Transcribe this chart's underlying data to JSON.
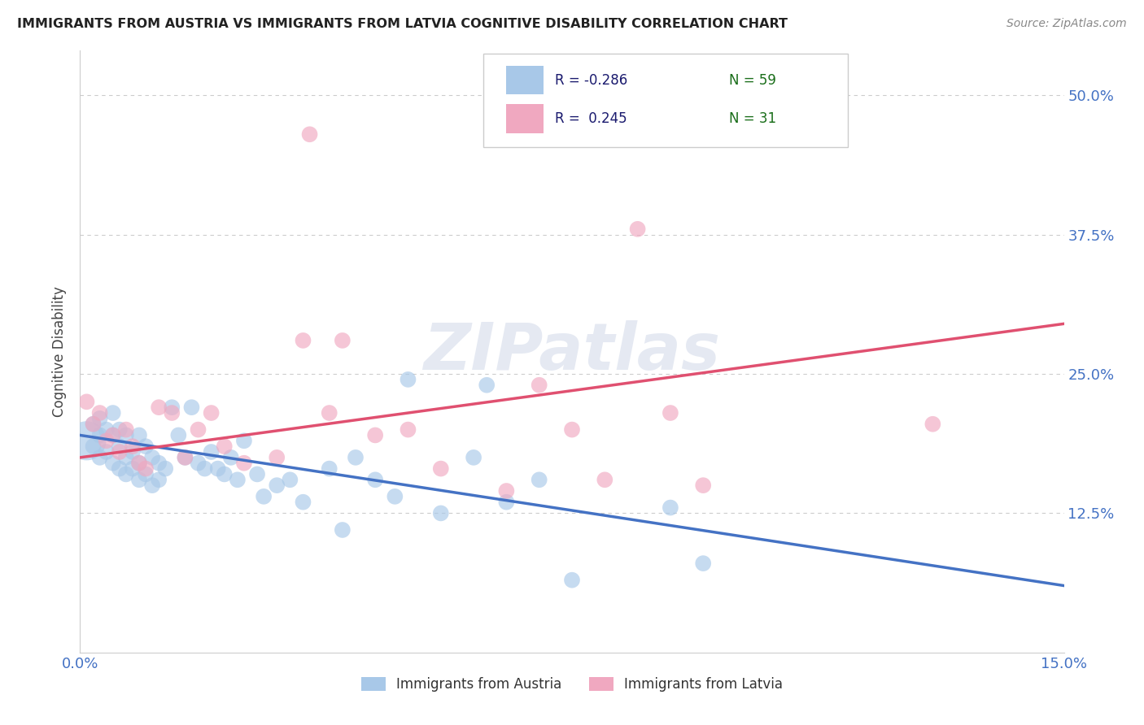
{
  "title": "IMMIGRANTS FROM AUSTRIA VS IMMIGRANTS FROM LATVIA COGNITIVE DISABILITY CORRELATION CHART",
  "source": "Source: ZipAtlas.com",
  "ylabel": "Cognitive Disability",
  "series1_color": "#a8c8e8",
  "series2_color": "#f0a8c0",
  "trend1_color": "#4472c4",
  "trend2_color": "#e05070",
  "xlim": [
    0.0,
    0.15
  ],
  "ylim": [
    0.0,
    0.54
  ],
  "ytick_values": [
    0.125,
    0.25,
    0.375,
    0.5
  ],
  "ytick_labels": [
    "12.5%",
    "25.0%",
    "37.5%",
    "50.0%"
  ],
  "watermark": "ZIPatlas",
  "background_color": "#ffffff",
  "grid_color": "#cccccc",
  "austria_trend_x": [
    0.0,
    0.15
  ],
  "austria_trend_y": [
    0.195,
    0.06
  ],
  "latvia_trend_x": [
    0.0,
    0.15
  ],
  "latvia_trend_y": [
    0.175,
    0.295
  ]
}
